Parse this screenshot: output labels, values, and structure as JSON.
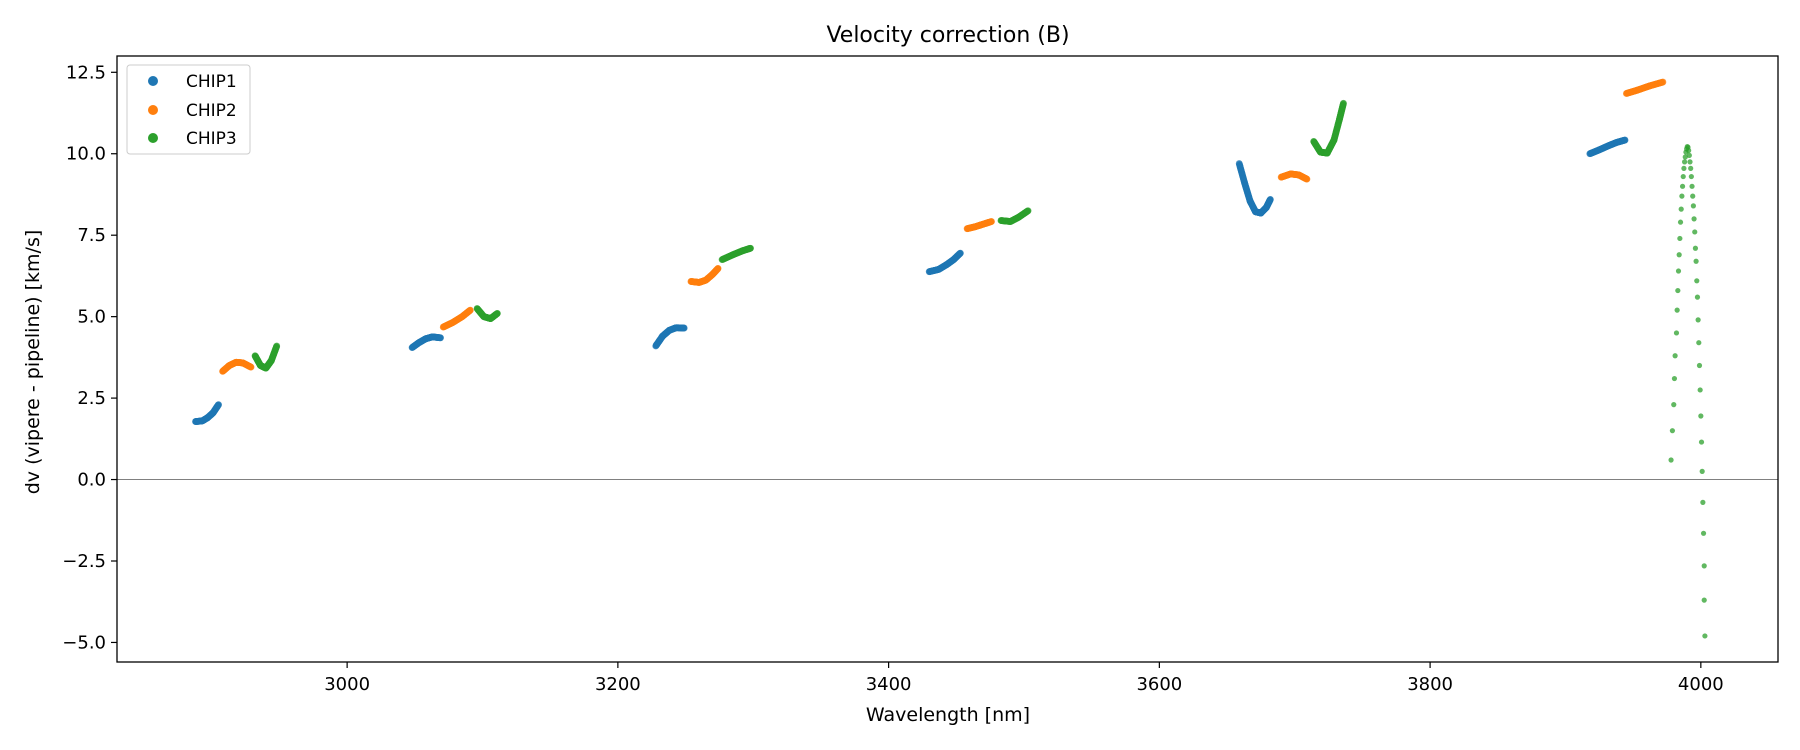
{
  "chart_data": {
    "type": "scatter",
    "title": "Velocity correction (B)",
    "xlabel": "Wavelength [nm]",
    "ylabel": "dv (vipere - pipeline) [km/s]",
    "xlim": [
      2830,
      4057
    ],
    "ylim": [
      -5.6,
      13.0
    ],
    "xticks": [
      3000,
      3200,
      3400,
      3600,
      3800,
      4000
    ],
    "yticks": [
      -5.0,
      -2.5,
      0.0,
      2.5,
      5.0,
      7.5,
      10.0,
      12.5
    ],
    "ytick_labels": [
      "−5.0",
      "−2.5",
      "0.0",
      "2.5",
      "5.0",
      "7.5",
      "10.0",
      "12.5"
    ],
    "hline": 0.0,
    "grid": false,
    "legend_position": "top-left",
    "series": [
      {
        "name": "CHIP1",
        "color": "#1f77b4",
        "segments": [
          [
            [
              2888,
              1.78
            ],
            [
              2893,
              1.8
            ],
            [
              2897,
              1.9
            ],
            [
              2901,
              2.05
            ],
            [
              2905,
              2.3
            ]
          ],
          [
            [
              3048,
              4.05
            ],
            [
              3053,
              4.2
            ],
            [
              3058,
              4.32
            ],
            [
              3063,
              4.38
            ],
            [
              3069,
              4.35
            ]
          ],
          [
            [
              3228,
              4.1
            ],
            [
              3233,
              4.4
            ],
            [
              3238,
              4.58
            ],
            [
              3243,
              4.66
            ],
            [
              3249,
              4.65
            ]
          ],
          [
            [
              3430,
              6.38
            ],
            [
              3437,
              6.45
            ],
            [
              3443,
              6.6
            ],
            [
              3448,
              6.75
            ],
            [
              3453,
              6.95
            ]
          ],
          [
            [
              3659,
              9.7
            ],
            [
              3663,
              9.1
            ],
            [
              3667,
              8.55
            ],
            [
              3671,
              8.22
            ],
            [
              3675,
              8.18
            ],
            [
              3679,
              8.35
            ],
            [
              3682,
              8.6
            ]
          ],
          [
            [
              3918,
              10.0
            ],
            [
              3925,
              10.12
            ],
            [
              3932,
              10.25
            ],
            [
              3938,
              10.35
            ],
            [
              3944,
              10.42
            ]
          ]
        ]
      },
      {
        "name": "CHIP2",
        "color": "#ff7f0e",
        "segments": [
          [
            [
              2908,
              3.32
            ],
            [
              2913,
              3.5
            ],
            [
              2918,
              3.6
            ],
            [
              2923,
              3.58
            ],
            [
              2929,
              3.45
            ]
          ],
          [
            [
              3071,
              4.68
            ],
            [
              3078,
              4.82
            ],
            [
              3085,
              5.0
            ],
            [
              3091,
              5.2
            ]
          ],
          [
            [
              3254,
              6.08
            ],
            [
              3260,
              6.05
            ],
            [
              3265,
              6.12
            ],
            [
              3270,
              6.3
            ],
            [
              3274,
              6.48
            ]
          ],
          [
            [
              3458,
              7.7
            ],
            [
              3464,
              7.76
            ],
            [
              3470,
              7.84
            ],
            [
              3476,
              7.92
            ]
          ],
          [
            [
              3690,
              9.28
            ],
            [
              3697,
              9.38
            ],
            [
              3703,
              9.35
            ],
            [
              3709,
              9.22
            ]
          ],
          [
            [
              3945,
              11.85
            ],
            [
              3953,
              11.95
            ],
            [
              3962,
              12.08
            ],
            [
              3972,
              12.2
            ]
          ]
        ]
      },
      {
        "name": "CHIP3",
        "color": "#2ca02c",
        "segments": [
          [
            [
              2932,
              3.8
            ],
            [
              2936,
              3.5
            ],
            [
              2940,
              3.42
            ],
            [
              2944,
              3.65
            ],
            [
              2948,
              4.1
            ]
          ],
          [
            [
              3096,
              5.25
            ],
            [
              3101,
              5.0
            ],
            [
              3106,
              4.94
            ],
            [
              3111,
              5.1
            ]
          ],
          [
            [
              3277,
              6.75
            ],
            [
              3285,
              6.9
            ],
            [
              3292,
              7.02
            ],
            [
              3298,
              7.1
            ]
          ],
          [
            [
              3483,
              7.95
            ],
            [
              3490,
              7.92
            ],
            [
              3496,
              8.05
            ],
            [
              3503,
              8.25
            ]
          ],
          [
            [
              3714,
              10.38
            ],
            [
              3719,
              10.05
            ],
            [
              3724,
              10.02
            ],
            [
              3729,
              10.42
            ],
            [
              3733,
              11.05
            ],
            [
              3736,
              11.55
            ]
          ]
        ],
        "sparse_points": [
          [
            3978,
            0.6
          ],
          [
            3979,
            1.5
          ],
          [
            3980,
            2.3
          ],
          [
            3980.5,
            3.1
          ],
          [
            3981,
            3.8
          ],
          [
            3982,
            4.5
          ],
          [
            3982.5,
            5.2
          ],
          [
            3983,
            5.8
          ],
          [
            3983.5,
            6.4
          ],
          [
            3984,
            6.9
          ],
          [
            3984.5,
            7.4
          ],
          [
            3985,
            7.9
          ],
          [
            3985.5,
            8.3
          ],
          [
            3986,
            8.7
          ],
          [
            3986.5,
            9.0
          ],
          [
            3987,
            9.3
          ],
          [
            3987.5,
            9.55
          ],
          [
            3988,
            9.75
          ],
          [
            3988.5,
            9.9
          ],
          [
            3989,
            10.05
          ],
          [
            3989.5,
            10.15
          ],
          [
            3990,
            10.22
          ],
          [
            3990.5,
            10.2
          ],
          [
            3991,
            10.1
          ],
          [
            3991.5,
            9.95
          ],
          [
            3992,
            9.75
          ],
          [
            3992.5,
            9.55
          ],
          [
            3993,
            9.3
          ],
          [
            3993.5,
            9.0
          ],
          [
            3994,
            8.7
          ],
          [
            3994.5,
            8.4
          ],
          [
            3995,
            8.0
          ],
          [
            3995.5,
            7.6
          ],
          [
            3996,
            7.1
          ],
          [
            3996.5,
            6.7
          ],
          [
            3997,
            6.1
          ],
          [
            3997.5,
            5.6
          ],
          [
            3998,
            4.9
          ],
          [
            3998.5,
            4.2
          ],
          [
            3999,
            3.5
          ],
          [
            3999.5,
            2.75
          ],
          [
            4000,
            1.95
          ],
          [
            4000.5,
            1.15
          ],
          [
            4001,
            0.25
          ],
          [
            4001.5,
            -0.7
          ],
          [
            4002,
            -1.65
          ],
          [
            4002.5,
            -2.65
          ],
          [
            4002.5,
            -3.7
          ],
          [
            4003,
            -4.8
          ]
        ]
      }
    ]
  }
}
